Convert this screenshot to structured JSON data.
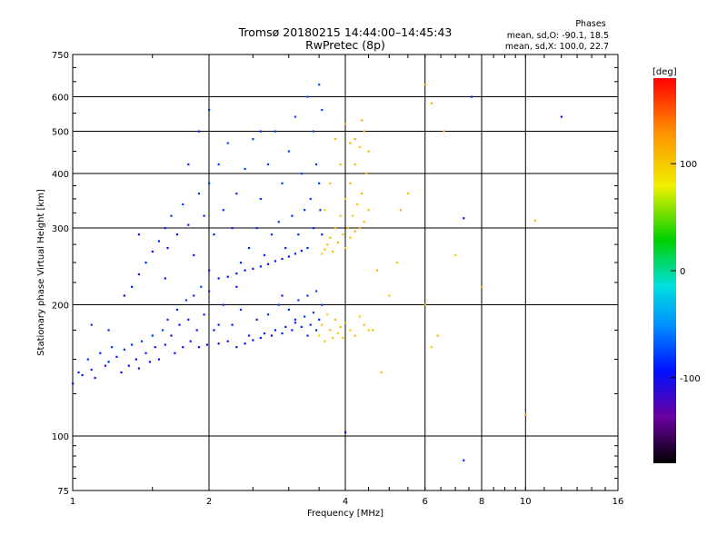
{
  "header": {
    "title_line1": "Tromsø 20180215 14:44:00–14:45:43",
    "title_line2": "RwPretec (8p)",
    "stats_title": "Phases",
    "stats_o": "mean, sd,O: -90.1, 18.5",
    "stats_x": "mean, sd,X: 100.0, 22.7"
  },
  "chart_data": {
    "type": "scatter",
    "title": "Tromsø 20180215 14:44:00–14:45:43",
    "subtitle": "RwPretec (8p)",
    "xlabel": "Frequency [MHz]",
    "ylabel": "Stationary phase Virtual Height [km]",
    "x_scale": "log",
    "y_scale": "log",
    "xlim": [
      1,
      16
    ],
    "ylim": [
      75,
      750
    ],
    "x_ticks": [
      1,
      2,
      4,
      6,
      8,
      10,
      16
    ],
    "x_tick_labels": [
      "1",
      "2",
      "4",
      "6",
      "8",
      "10",
      "16"
    ],
    "y_ticks": [
      75,
      100,
      200,
      300,
      400,
      500,
      600,
      750
    ],
    "y_tick_labels": [
      "75",
      "100",
      "200",
      "300",
      "400",
      "500",
      "600",
      "750"
    ],
    "grid": true,
    "colorbar": {
      "label": "[deg]",
      "ticks": [
        100,
        0,
        -100
      ],
      "tick_labels": [
        "100",
        "0",
        "-100"
      ],
      "range": [
        -180,
        180
      ]
    },
    "series": [
      {
        "name": "O",
        "points": [
          [
            1.0,
            132,
            -95
          ],
          [
            1.03,
            140,
            -90
          ],
          [
            1.05,
            138,
            -100
          ],
          [
            1.08,
            150,
            -85
          ],
          [
            1.1,
            142,
            -92
          ],
          [
            1.12,
            136,
            -98
          ],
          [
            1.15,
            155,
            -88
          ],
          [
            1.18,
            145,
            -95
          ],
          [
            1.2,
            148,
            -90
          ],
          [
            1.22,
            160,
            -80
          ],
          [
            1.25,
            152,
            -92
          ],
          [
            1.28,
            140,
            -100
          ],
          [
            1.3,
            158,
            -86
          ],
          [
            1.33,
            145,
            -96
          ],
          [
            1.35,
            162,
            -84
          ],
          [
            1.38,
            150,
            -94
          ],
          [
            1.4,
            143,
            -98
          ],
          [
            1.42,
            165,
            -82
          ],
          [
            1.45,
            155,
            -90
          ],
          [
            1.48,
            148,
            -96
          ],
          [
            1.5,
            170,
            -85
          ],
          [
            1.52,
            160,
            -92
          ],
          [
            1.55,
            150,
            -98
          ],
          [
            1.58,
            175,
            -80
          ],
          [
            1.6,
            162,
            -90
          ],
          [
            1.62,
            185,
            -84
          ],
          [
            1.65,
            170,
            -94
          ],
          [
            1.68,
            155,
            -100
          ],
          [
            1.7,
            195,
            -86
          ],
          [
            1.72,
            180,
            -92
          ],
          [
            1.75,
            160,
            -96
          ],
          [
            1.78,
            205,
            -82
          ],
          [
            1.8,
            185,
            -90
          ],
          [
            1.82,
            165,
            -98
          ],
          [
            1.85,
            210,
            -85
          ],
          [
            1.88,
            175,
            -92
          ],
          [
            1.9,
            160,
            -96
          ],
          [
            1.92,
            220,
            -80
          ],
          [
            1.95,
            190,
            -90
          ],
          [
            1.98,
            162,
            -96
          ],
          [
            2.0,
            215,
            -88
          ],
          [
            2.05,
            175,
            -94
          ],
          [
            2.1,
            163,
            -100
          ],
          [
            2.15,
            200,
            -86
          ],
          [
            2.2,
            165,
            -92
          ],
          [
            2.25,
            180,
            -90
          ],
          [
            2.3,
            160,
            -96
          ],
          [
            2.35,
            195,
            -84
          ],
          [
            2.4,
            163,
            -94
          ],
          [
            2.45,
            170,
            -90
          ],
          [
            2.5,
            166,
            -95
          ],
          [
            2.55,
            185,
            -88
          ],
          [
            2.6,
            168,
            -92
          ],
          [
            2.65,
            172,
            -90
          ],
          [
            2.7,
            190,
            -86
          ],
          [
            2.75,
            170,
            -94
          ],
          [
            2.8,
            175,
            -92
          ],
          [
            2.85,
            200,
            -82
          ],
          [
            2.9,
            172,
            -90
          ],
          [
            2.95,
            178,
            -88
          ],
          [
            3.0,
            195,
            -85
          ],
          [
            3.05,
            175,
            -92
          ],
          [
            3.1,
            182,
            -86
          ],
          [
            3.15,
            205,
            -80
          ],
          [
            3.2,
            178,
            -90
          ],
          [
            3.25,
            188,
            -84
          ],
          [
            3.3,
            210,
            -78
          ],
          [
            3.35,
            180,
            -88
          ],
          [
            3.4,
            192,
            -82
          ],
          [
            3.45,
            215,
            -76
          ],
          [
            3.5,
            185,
            -86
          ],
          [
            1.3,
            210,
            -95
          ],
          [
            1.35,
            220,
            -92
          ],
          [
            1.4,
            235,
            -90
          ],
          [
            1.45,
            250,
            -88
          ],
          [
            1.5,
            265,
            -94
          ],
          [
            1.55,
            280,
            -90
          ],
          [
            1.6,
            300,
            -86
          ],
          [
            1.62,
            270,
            -96
          ],
          [
            1.65,
            320,
            -84
          ],
          [
            1.7,
            290,
            -92
          ],
          [
            1.75,
            340,
            -80
          ],
          [
            1.8,
            305,
            -90
          ],
          [
            1.85,
            260,
            -96
          ],
          [
            1.9,
            360,
            -82
          ],
          [
            1.95,
            320,
            -88
          ],
          [
            2.0,
            380,
            -80
          ],
          [
            2.0,
            240,
            -94
          ],
          [
            2.05,
            290,
            -90
          ],
          [
            2.1,
            230,
            -96
          ],
          [
            2.1,
            420,
            -78
          ],
          [
            2.15,
            330,
            -86
          ],
          [
            2.2,
            232,
            -94
          ],
          [
            2.2,
            470,
            -76
          ],
          [
            2.25,
            300,
            -88
          ],
          [
            2.3,
            236,
            -92
          ],
          [
            2.3,
            360,
            -84
          ],
          [
            2.35,
            250,
            -90
          ],
          [
            2.4,
            240,
            -94
          ],
          [
            2.4,
            410,
            -80
          ],
          [
            2.45,
            270,
            -88
          ],
          [
            2.5,
            242,
            -92
          ],
          [
            2.5,
            480,
            -78
          ],
          [
            2.55,
            300,
            -86
          ],
          [
            2.6,
            245,
            -92
          ],
          [
            2.6,
            350,
            -84
          ],
          [
            2.65,
            260,
            -90
          ],
          [
            2.7,
            248,
            -94
          ],
          [
            2.7,
            420,
            -80
          ],
          [
            2.75,
            290,
            -86
          ],
          [
            2.8,
            252,
            -92
          ],
          [
            2.8,
            500,
            -76
          ],
          [
            2.85,
            310,
            -84
          ],
          [
            2.9,
            255,
            -90
          ],
          [
            2.9,
            380,
            -82
          ],
          [
            2.95,
            270,
            -88
          ],
          [
            3.0,
            258,
            -92
          ],
          [
            3.0,
            450,
            -78
          ],
          [
            3.05,
            320,
            -84
          ],
          [
            3.1,
            262,
            -90
          ],
          [
            3.1,
            540,
            -74
          ],
          [
            3.15,
            290,
            -86
          ],
          [
            3.2,
            266,
            -90
          ],
          [
            3.2,
            400,
            -80
          ],
          [
            3.25,
            330,
            -84
          ],
          [
            3.3,
            270,
            -88
          ],
          [
            3.3,
            600,
            -72
          ],
          [
            3.35,
            350,
            -82
          ],
          [
            3.4,
            300,
            -86
          ],
          [
            3.4,
            500,
            -78
          ],
          [
            3.45,
            420,
            -80
          ],
          [
            3.5,
            640,
            -70
          ],
          [
            3.5,
            380,
            -82
          ],
          [
            3.52,
            330,
            -84
          ],
          [
            3.55,
            560,
            -76
          ],
          [
            3.55,
            290,
            -88
          ],
          [
            1.1,
            180,
            -85
          ],
          [
            1.2,
            175,
            -90
          ],
          [
            1.4,
            290,
            -92
          ],
          [
            1.6,
            230,
            -90
          ],
          [
            1.8,
            420,
            -86
          ],
          [
            1.9,
            500,
            -88
          ],
          [
            2.0,
            560,
            -84
          ],
          [
            2.1,
            180,
            -90
          ],
          [
            2.3,
            220,
            -92
          ],
          [
            2.6,
            500,
            -86
          ],
          [
            2.9,
            210,
            -90
          ],
          [
            3.1,
            185,
            -88
          ],
          [
            3.3,
            170,
            -84
          ],
          [
            3.45,
            175,
            -86
          ],
          [
            3.55,
            200,
            -80
          ],
          [
            7.3,
            88,
            -90
          ],
          [
            7.3,
            316,
            -92
          ],
          [
            12.0,
            540,
            -95
          ],
          [
            4.0,
            102,
            -94
          ],
          [
            7.6,
            600,
            -88
          ]
        ]
      },
      {
        "name": "X",
        "points": [
          [
            3.5,
            170,
            92
          ],
          [
            3.55,
            180,
            100
          ],
          [
            3.6,
            165,
            104
          ],
          [
            3.65,
            190,
            96
          ],
          [
            3.7,
            175,
            110
          ],
          [
            3.75,
            168,
            100
          ],
          [
            3.8,
            185,
            106
          ],
          [
            3.85,
            172,
            98
          ],
          [
            3.9,
            178,
            108
          ],
          [
            3.95,
            168,
            102
          ],
          [
            4.0,
            182,
            112
          ],
          [
            4.1,
            175,
            100
          ],
          [
            4.2,
            170,
            106
          ],
          [
            4.3,
            188,
            96
          ],
          [
            4.4,
            180,
            110
          ],
          [
            4.5,
            175,
            100
          ],
          [
            3.55,
            262,
            96
          ],
          [
            3.6,
            268,
            102
          ],
          [
            3.65,
            275,
            98
          ],
          [
            3.7,
            285,
            106
          ],
          [
            3.75,
            265,
            100
          ],
          [
            3.8,
            300,
            104
          ],
          [
            3.85,
            278,
            110
          ],
          [
            3.9,
            320,
            100
          ],
          [
            3.95,
            290,
            106
          ],
          [
            4.0,
            270,
            98
          ],
          [
            4.0,
            350,
            104
          ],
          [
            4.05,
            300,
            112
          ],
          [
            4.1,
            285,
            100
          ],
          [
            4.1,
            380,
            106
          ],
          [
            4.15,
            320,
            96
          ],
          [
            4.2,
            295,
            108
          ],
          [
            4.2,
            420,
            104
          ],
          [
            4.25,
            340,
            100
          ],
          [
            4.3,
            300,
            110
          ],
          [
            4.3,
            460,
            98
          ],
          [
            4.35,
            360,
            106
          ],
          [
            4.4,
            310,
            102
          ],
          [
            4.4,
            500,
            108
          ],
          [
            4.45,
            400,
            100
          ],
          [
            4.5,
            330,
            106
          ],
          [
            4.5,
            450,
            112
          ],
          [
            4.2,
            480,
            116
          ],
          [
            4.35,
            530,
            120
          ],
          [
            3.8,
            480,
            108
          ],
          [
            3.9,
            420,
            104
          ],
          [
            4.0,
            520,
            112
          ],
          [
            4.1,
            470,
            118
          ],
          [
            3.7,
            380,
            100
          ],
          [
            3.6,
            330,
            96
          ],
          [
            5.3,
            330,
            110
          ],
          [
            5.5,
            360,
            104
          ],
          [
            6.0,
            640,
            120
          ],
          [
            6.2,
            580,
            116
          ],
          [
            6.0,
            200,
            106
          ],
          [
            6.4,
            170,
            112
          ],
          [
            6.6,
            500,
            108
          ],
          [
            7.0,
            260,
            104
          ],
          [
            8.0,
            220,
            120
          ],
          [
            10.0,
            112,
            116
          ],
          [
            10.5,
            312,
            110
          ],
          [
            5.2,
            250,
            100
          ],
          [
            6.2,
            160,
            96
          ],
          [
            4.8,
            140,
            106
          ],
          [
            5.0,
            210,
            102
          ],
          [
            4.6,
            175,
            112
          ],
          [
            4.7,
            240,
            110
          ]
        ]
      }
    ]
  }
}
